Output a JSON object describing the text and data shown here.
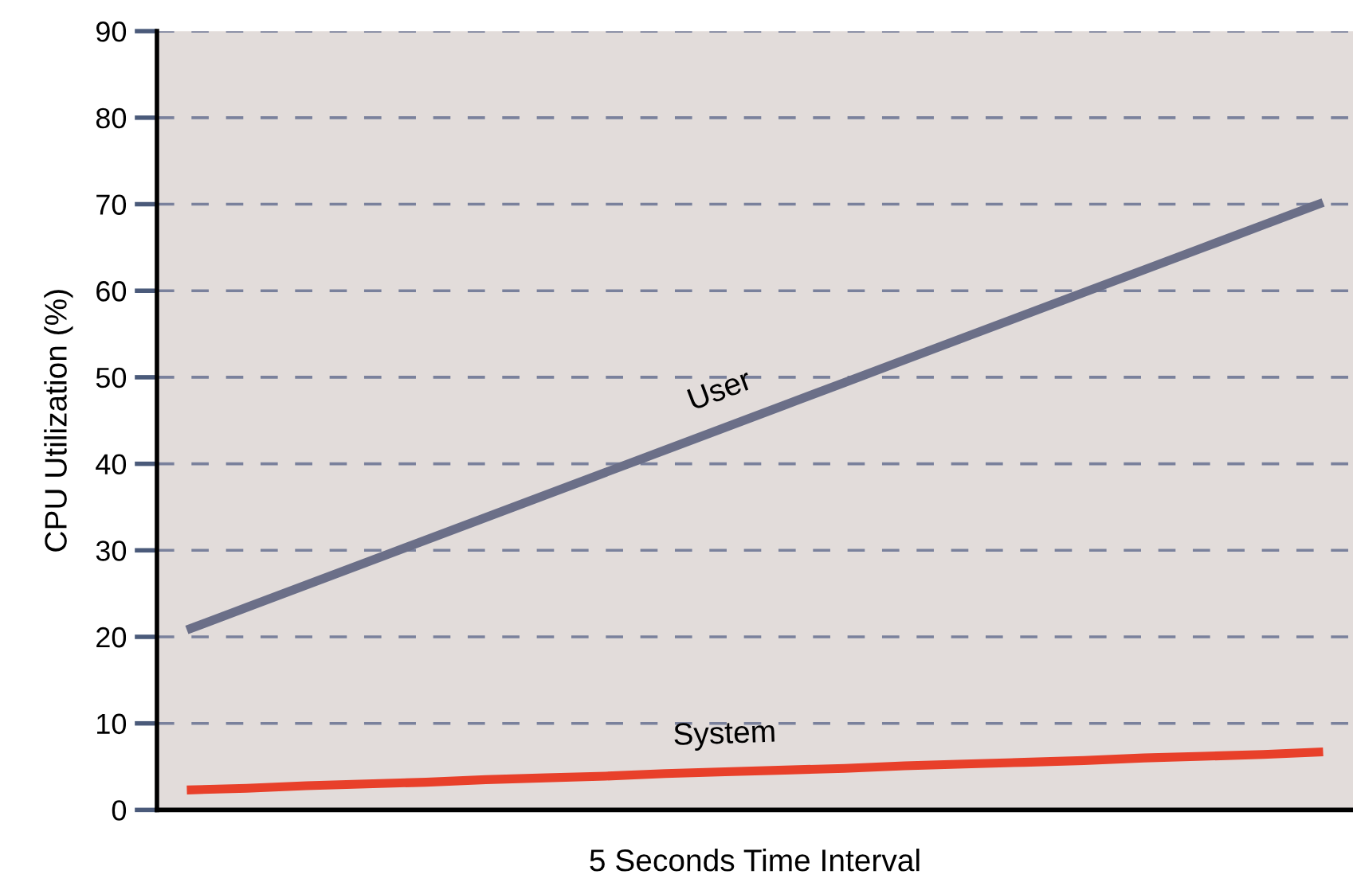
{
  "chart_data": {
    "type": "line",
    "xlabel": "5 Seconds Time Interval",
    "ylabel": "CPU Utilization (%)",
    "categories": [
      null,
      null,
      null,
      null,
      null,
      null,
      null,
      null,
      null,
      null,
      null,
      null,
      null,
      null,
      null,
      null,
      null,
      null,
      null,
      null
    ],
    "series": [
      {
        "name": "User",
        "color": "#6b6f88",
        "values": [
          20.8,
          23.4,
          26.0,
          28.6,
          31.2,
          33.8,
          36.4,
          39.0,
          41.6,
          44.2,
          46.8,
          49.4,
          52.0,
          54.6,
          57.2,
          59.8,
          62.4,
          65.0,
          67.6,
          70.2
        ]
      },
      {
        "name": "System",
        "color": "#e8402a",
        "values": [
          2.3,
          2.5,
          2.8,
          3.0,
          3.2,
          3.5,
          3.7,
          3.9,
          4.2,
          4.4,
          4.6,
          4.8,
          5.1,
          5.3,
          5.5,
          5.7,
          6.0,
          6.2,
          6.4,
          6.7
        ]
      }
    ],
    "ylim": [
      0,
      90
    ],
    "yticks": [
      0,
      10,
      20,
      30,
      40,
      50,
      60,
      70,
      80,
      90
    ],
    "grid": "y",
    "line_style": "solid",
    "marker": "none",
    "legend": false
  }
}
